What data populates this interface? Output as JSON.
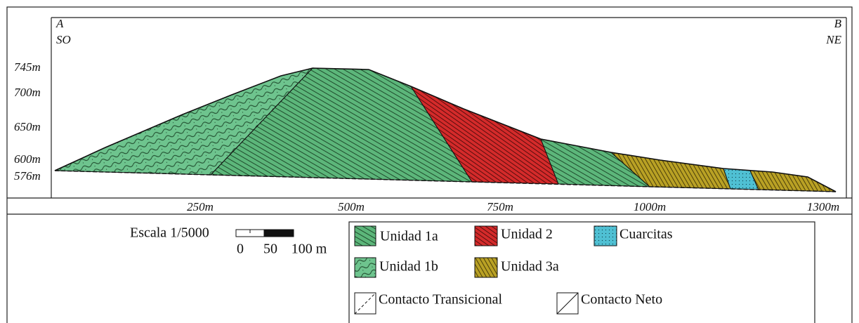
{
  "profile": {
    "start": "A",
    "end": "B",
    "start_direction": "SO",
    "end_direction": "NE"
  },
  "elevations": [
    "745m",
    "700m",
    "650m",
    "600m",
    "576m"
  ],
  "distances": [
    "250m",
    "500m",
    "750m",
    "1000m",
    "1300m"
  ],
  "scale": {
    "title": "Escala 1/5000",
    "ticks": [
      "0",
      "50",
      "100 m"
    ]
  },
  "legend": {
    "units": [
      "Unidad 1a",
      "Unidad 2",
      "Cuarcitas",
      "Unidad 1b",
      "Unidad 3a"
    ],
    "contacts": [
      "Contacto Transicional",
      "Contacto Neto"
    ]
  }
}
